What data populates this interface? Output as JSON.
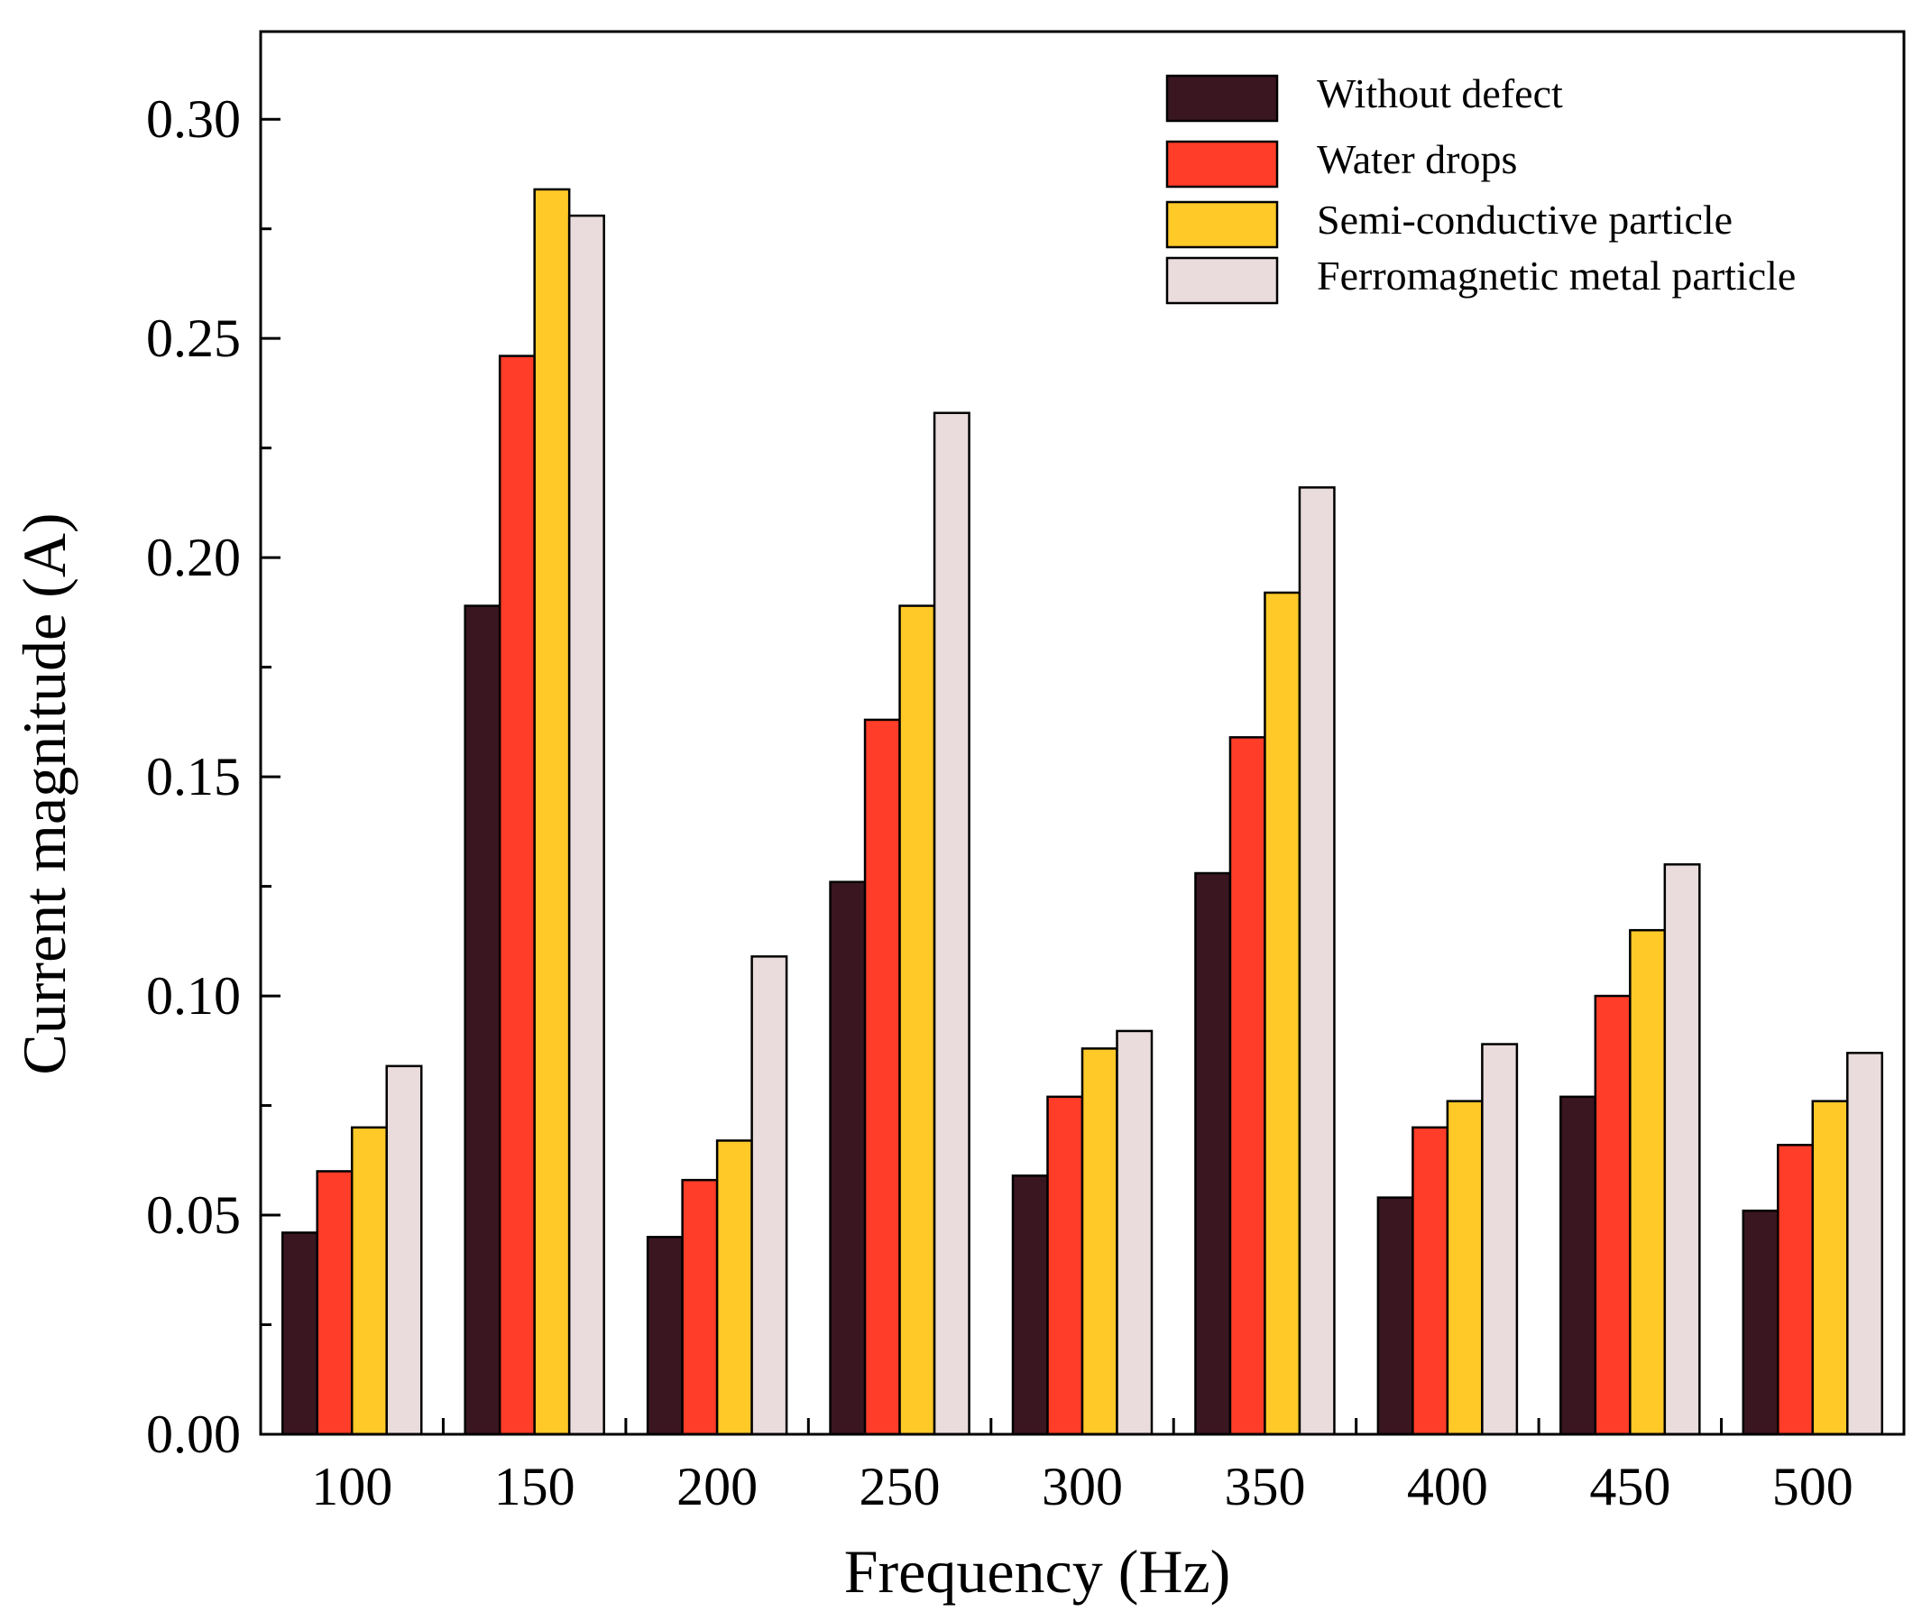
{
  "chart_data": {
    "type": "bar",
    "title": "",
    "xlabel": "Frequency (Hz)",
    "ylabel": "Current magnitude (A)",
    "categories": [
      "100",
      "150",
      "200",
      "250",
      "300",
      "350",
      "400",
      "450",
      "500"
    ],
    "ylim": [
      0,
      0.32
    ],
    "yticks": [
      "0.00",
      "0.05",
      "0.10",
      "0.15",
      "0.20",
      "0.25",
      "0.30"
    ],
    "ytick_values": [
      0,
      0.05,
      0.1,
      0.15,
      0.2,
      0.25,
      0.3
    ],
    "minor_ytick_values": [
      0.025,
      0.075,
      0.125,
      0.175,
      0.225,
      0.275
    ],
    "grid": false,
    "legend_position": "top-right",
    "series": [
      {
        "name": "Without defect",
        "color": "#3a1620",
        "values": [
          0.046,
          0.189,
          0.045,
          0.126,
          0.059,
          0.128,
          0.054,
          0.077,
          0.051
        ]
      },
      {
        "name": "Water drops",
        "color": "#ff3d28",
        "values": [
          0.06,
          0.246,
          0.058,
          0.163,
          0.077,
          0.159,
          0.07,
          0.1,
          0.066
        ]
      },
      {
        "name": "Semi-conductive particle",
        "color": "#ffc928",
        "values": [
          0.07,
          0.284,
          0.067,
          0.189,
          0.088,
          0.192,
          0.076,
          0.115,
          0.076
        ]
      },
      {
        "name": "Ferromagnetic metal particle",
        "color": "#eadcdc",
        "values": [
          0.084,
          0.278,
          0.109,
          0.233,
          0.092,
          0.216,
          0.089,
          0.13,
          0.087
        ]
      }
    ]
  }
}
